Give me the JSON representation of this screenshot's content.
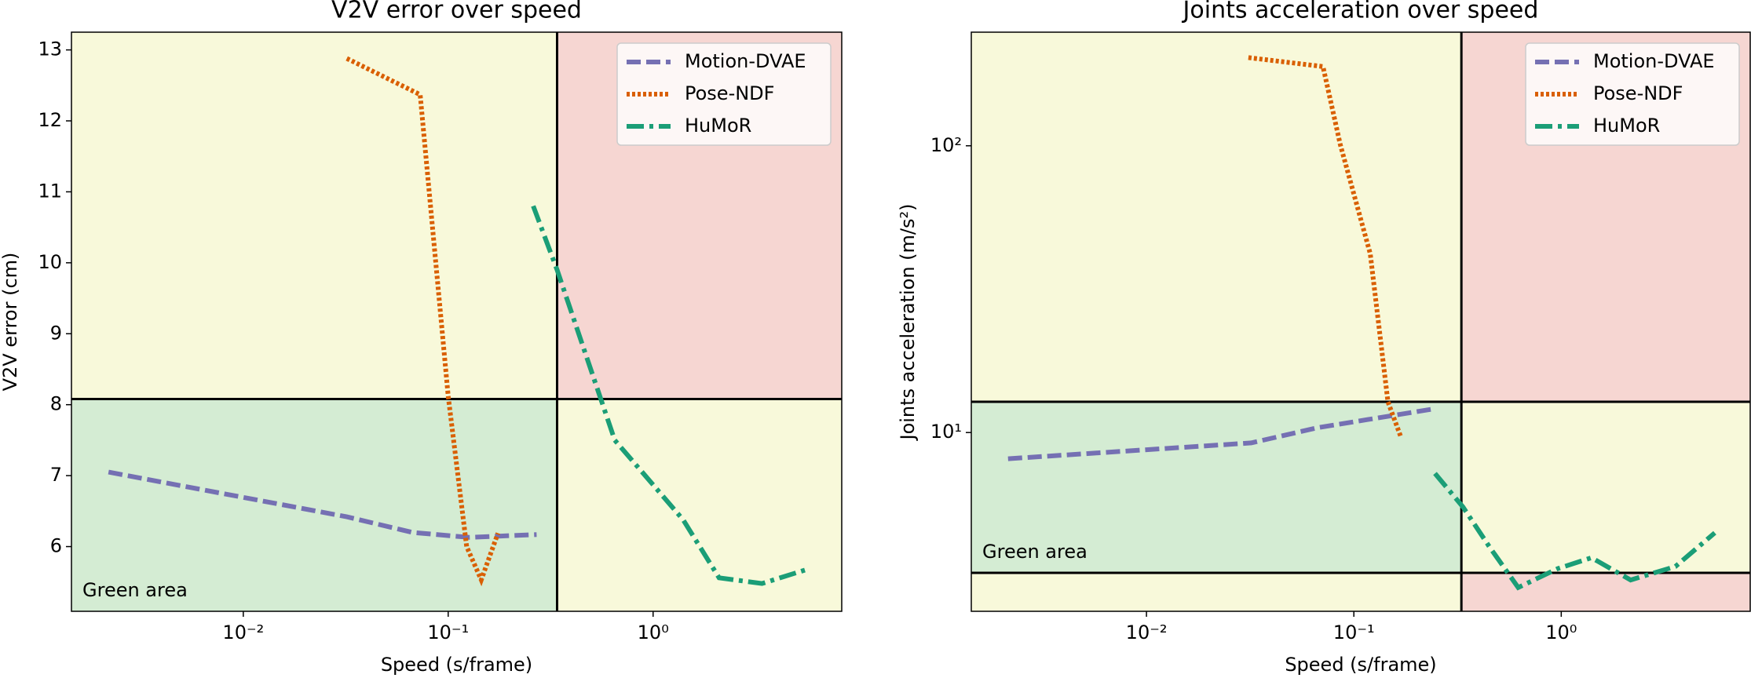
{
  "chart_data": [
    {
      "type": "line",
      "title": "V2V error over speed",
      "xlabel": "Speed (s/frame)",
      "ylabel": "V2V error (cm)",
      "xlog": true,
      "ylog": false,
      "xlim": [
        0.00145,
        8.33
      ],
      "ylim": [
        5.088,
        13.25
      ],
      "xticks": [
        {
          "value": 0.01,
          "label": "10⁻²"
        },
        {
          "value": 0.1,
          "label": "10⁻¹"
        },
        {
          "value": 1,
          "label": "10⁰"
        }
      ],
      "yticks": [
        6,
        7,
        8,
        9,
        10,
        11,
        12,
        13
      ],
      "x_threshold": 0.34,
      "y_thresholds": [
        8.08
      ],
      "annotation": "Green area",
      "legend": "upper right",
      "series": [
        {
          "name": "Motion-DVAE",
          "color": "#7570b3",
          "linestyle": "dashed",
          "x": [
            0.0022,
            0.032,
            0.067,
            0.126,
            0.27
          ],
          "values": [
            7.05,
            6.42,
            6.2,
            6.13,
            6.17
          ]
        },
        {
          "name": "Pose-NDF",
          "color": "#d95f02",
          "linestyle": "dotted",
          "x": [
            0.032,
            0.073,
            0.1,
            0.123,
            0.145,
            0.175
          ],
          "values": [
            12.88,
            12.37,
            8.12,
            6.0,
            5.53,
            6.19
          ]
        },
        {
          "name": "HuMoR",
          "color": "#1b9e77",
          "linestyle": "dashdot",
          "x": [
            0.26,
            0.34,
            0.65,
            1.4,
            2.1,
            3.4,
            5.8
          ],
          "values": [
            10.8,
            9.9,
            7.5,
            6.38,
            5.56,
            5.48,
            5.69
          ]
        }
      ]
    },
    {
      "type": "line",
      "title": "Joints acceleration over speed",
      "xlabel": "Speed (s/frame)",
      "ylabel": "Joints acceleration (m/s²)",
      "xlog": true,
      "ylog": true,
      "xlim": [
        0.00143,
        8.15
      ],
      "ylim": [
        2.38,
        249
      ],
      "xticks": [
        {
          "value": 0.01,
          "label": "10⁻²"
        },
        {
          "value": 0.1,
          "label": "10⁻¹"
        },
        {
          "value": 1,
          "label": "10⁰"
        }
      ],
      "yticks": [
        {
          "value": 10,
          "label": "10¹"
        },
        {
          "value": 100,
          "label": "10²"
        }
      ],
      "x_threshold": 0.33,
      "y_thresholds": [
        3.24,
        12.8
      ],
      "annotation": "Green area",
      "legend": "upper right",
      "series": [
        {
          "name": "Motion-DVAE",
          "color": "#7570b3",
          "linestyle": "dashed",
          "x": [
            0.00215,
            0.032,
            0.067,
            0.117,
            0.245
          ],
          "values": [
            8.1,
            9.2,
            10.4,
            11.1,
            12.1
          ]
        },
        {
          "name": "Pose-NDF",
          "color": "#d95f02",
          "linestyle": "dotted",
          "x": [
            0.031,
            0.071,
            0.086,
            0.12,
            0.146,
            0.169
          ],
          "values": [
            203,
            189,
            101,
            42,
            12.8,
            9.6
          ]
        },
        {
          "name": "HuMoR",
          "color": "#1b9e77",
          "linestyle": "dashdot",
          "x": [
            0.246,
            0.336,
            0.45,
            0.62,
            0.96,
            1.4,
            2.16,
            3.55,
            5.5
          ],
          "values": [
            7.2,
            5.5,
            4.0,
            2.88,
            3.35,
            3.66,
            3.06,
            3.41,
            4.47
          ]
        }
      ]
    }
  ]
}
